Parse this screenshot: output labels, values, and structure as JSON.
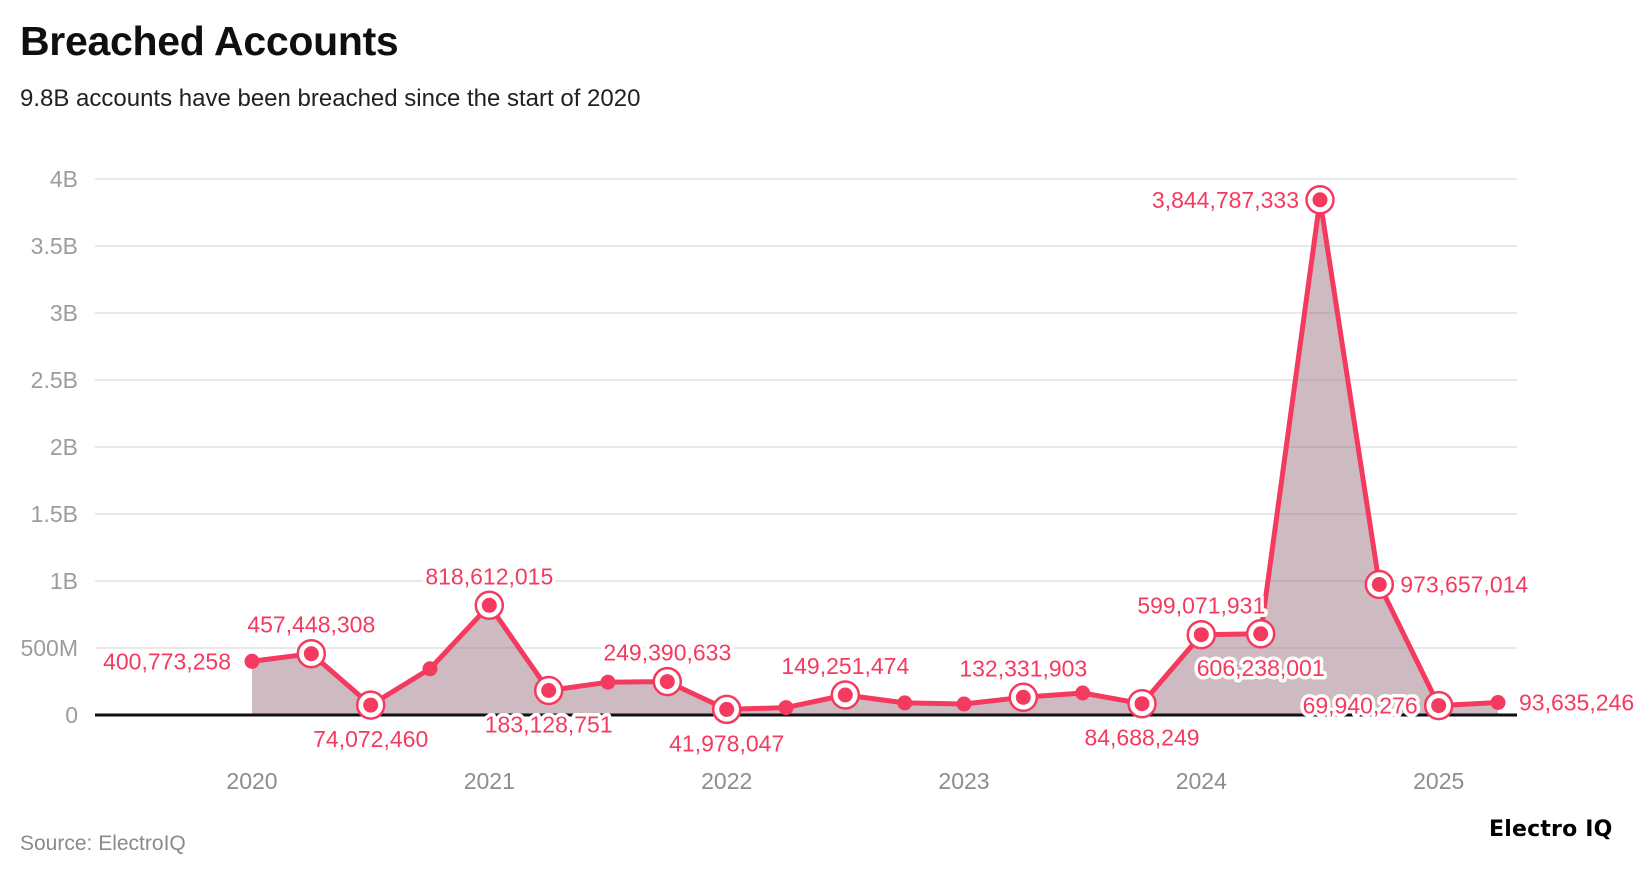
{
  "header": {
    "title": "Breached Accounts",
    "subtitle": "9.8B accounts have been breached since the start of 2020"
  },
  "footer": {
    "source": "Source: ElectroIQ",
    "logo": "Electro IQ"
  },
  "chart_data": {
    "type": "area",
    "title": "Breached Accounts",
    "subtitle": "9.8B accounts have been breached since the start of 2020",
    "unit": "breached accounts per quarter",
    "grid": true,
    "legend": null,
    "ylim": [
      0,
      4000000000
    ],
    "y_ticks": [
      {
        "value": 0,
        "label": "0"
      },
      {
        "value": 500000000,
        "label": "500M"
      },
      {
        "value": 1000000000,
        "label": "1B"
      },
      {
        "value": 1500000000,
        "label": "1.5B"
      },
      {
        "value": 2000000000,
        "label": "2B"
      },
      {
        "value": 2500000000,
        "label": "2.5B"
      },
      {
        "value": 3000000000,
        "label": "3B"
      },
      {
        "value": 3500000000,
        "label": "3.5B"
      },
      {
        "value": 4000000000,
        "label": "4B"
      }
    ],
    "x_ticks": [
      {
        "label": "2020",
        "index": 0
      },
      {
        "label": "2021",
        "index": 4
      },
      {
        "label": "2022",
        "index": 8
      },
      {
        "label": "2023",
        "index": 12
      },
      {
        "label": "2024",
        "index": 16
      },
      {
        "label": "2025",
        "index": 20
      }
    ],
    "points": [
      {
        "x": "2020 Q1",
        "value": 400773258,
        "label": "400,773,258",
        "placement": "left",
        "ring": false,
        "estimated": false
      },
      {
        "x": "2020 Q2",
        "value": 457448308,
        "label": "457,448,308",
        "placement": "above",
        "ring": true,
        "estimated": false
      },
      {
        "x": "2020 Q3",
        "value": 74072460,
        "label": "74,072,460",
        "placement": "below",
        "ring": true,
        "estimated": false
      },
      {
        "x": "2020 Q4",
        "value": 345000000,
        "label": null,
        "placement": null,
        "ring": false,
        "estimated": true
      },
      {
        "x": "2021 Q1",
        "value": 818612015,
        "label": "818,612,015",
        "placement": "above",
        "ring": true,
        "estimated": false
      },
      {
        "x": "2021 Q2",
        "value": 183128751,
        "label": "183,128,751",
        "placement": "below",
        "ring": true,
        "estimated": false
      },
      {
        "x": "2021 Q3",
        "value": 245000000,
        "label": null,
        "placement": null,
        "ring": false,
        "estimated": true
      },
      {
        "x": "2021 Q4",
        "value": 249390633,
        "label": "249,390,633",
        "placement": "above",
        "ring": true,
        "estimated": false
      },
      {
        "x": "2022 Q1",
        "value": 41978047,
        "label": "41,978,047",
        "placement": "below",
        "ring": true,
        "estimated": false
      },
      {
        "x": "2022 Q2",
        "value": 55000000,
        "label": null,
        "placement": null,
        "ring": false,
        "estimated": true
      },
      {
        "x": "2022 Q3",
        "value": 149251474,
        "label": "149,251,474",
        "placement": "above",
        "ring": true,
        "estimated": false
      },
      {
        "x": "2022 Q4",
        "value": 90000000,
        "label": null,
        "placement": null,
        "ring": false,
        "estimated": true
      },
      {
        "x": "2023 Q1",
        "value": 82000000,
        "label": null,
        "placement": null,
        "ring": false,
        "estimated": true
      },
      {
        "x": "2023 Q2",
        "value": 132331903,
        "label": "132,331,903",
        "placement": "above",
        "ring": true,
        "estimated": false
      },
      {
        "x": "2023 Q3",
        "value": 164000000,
        "label": null,
        "placement": null,
        "ring": false,
        "estimated": true
      },
      {
        "x": "2023 Q4",
        "value": 84688249,
        "label": "84,688,249",
        "placement": "below",
        "ring": true,
        "estimated": false
      },
      {
        "x": "2024 Q1",
        "value": 599071931,
        "label": "599,071,931",
        "placement": "above",
        "ring": true,
        "estimated": false
      },
      {
        "x": "2024 Q2",
        "value": 606238001,
        "label": "606,238,001",
        "placement": "below",
        "ring": true,
        "estimated": false
      },
      {
        "x": "2024 Q3",
        "value": 3844787333,
        "label": "3,844,787,333",
        "placement": "left",
        "ring": true,
        "estimated": false
      },
      {
        "x": "2024 Q4",
        "value": 973657014,
        "label": "973,657,014",
        "placement": "right",
        "ring": true,
        "estimated": false
      },
      {
        "x": "2025 Q1",
        "value": 69940276,
        "label": "69,940,276",
        "placement": "left",
        "ring": true,
        "estimated": false
      },
      {
        "x": "2025 Q2",
        "value": 93635246,
        "label": "93,635,246",
        "placement": "right",
        "ring": false,
        "estimated": false
      }
    ],
    "colors": {
      "line": "#f43a5f",
      "fill": "rgba(146,105,117,0.45)",
      "axis": "#111111",
      "grid": "#e9e9e9",
      "y_tick_text": "#9c9c9c",
      "x_tick_text": "#8d8d8d",
      "label_text": "#f43a5f"
    }
  }
}
